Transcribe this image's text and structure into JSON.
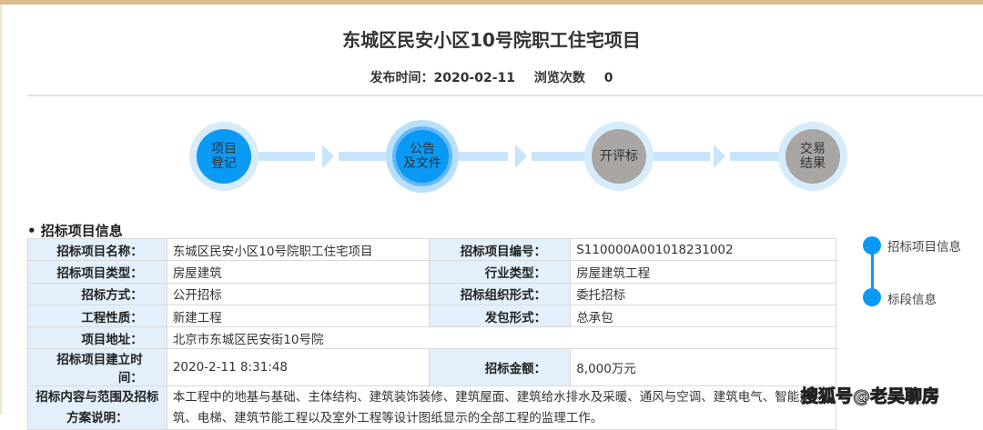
{
  "title": "东城区民安小区10号院职工住宅项目",
  "meta": {
    "publish_label": "发布时间：",
    "publish_date": "2020-02-11",
    "views_label": "浏览次数",
    "views": "0"
  },
  "steps": [
    {
      "line1": "项目",
      "line2": "登记",
      "status": "done"
    },
    {
      "line1": "公告",
      "line2": "及文件",
      "status": "current"
    },
    {
      "line1": "开评标",
      "line2": "",
      "status": "pending"
    },
    {
      "line1": "交易",
      "line2": "结果",
      "status": "pending"
    }
  ],
  "section_title": "• 招标项目信息",
  "table": {
    "rows": [
      [
        "招标项目名称：",
        "东城区民安小区10号院职工住宅项目",
        "招标项目编号：",
        "S110000A001018231002"
      ],
      [
        "招标项目类型：",
        "房屋建筑",
        "行业类型：",
        "房屋建筑工程"
      ],
      [
        "招标方式：",
        "公开招标",
        "招标组织形式：",
        "委托招标"
      ],
      [
        "工程性质：",
        "新建工程",
        "发包形式：",
        "总承包"
      ],
      [
        "项目地址：",
        "北京市东城区民安街10号院",
        "",
        ""
      ],
      [
        "招标项目建立时间：",
        "2020-2-11 8:31:48",
        "招标金额：",
        "8,000万元"
      ]
    ],
    "scope_label_1": "招标内容与范围及招标",
    "scope_label_2": "方案说明：",
    "scope_value": "本工程中的地基与基础、主体结构、建筑装饰装修、建筑屋面、建筑给水排水及采暖、通风与空调、建筑电气、智能建筑、电梯、建筑节能工程以及室外工程等设计图纸显示的全部工程的监理工作。"
  },
  "side_nav": [
    "招标项目信息",
    "标段信息"
  ],
  "watermark": "搜狐号@老吴聊房",
  "colors": {
    "accent": "#0a99f5",
    "pending": "#a8a5a3",
    "label_bg": "#e3f0fb",
    "top_border": "#dcbc8c"
  }
}
